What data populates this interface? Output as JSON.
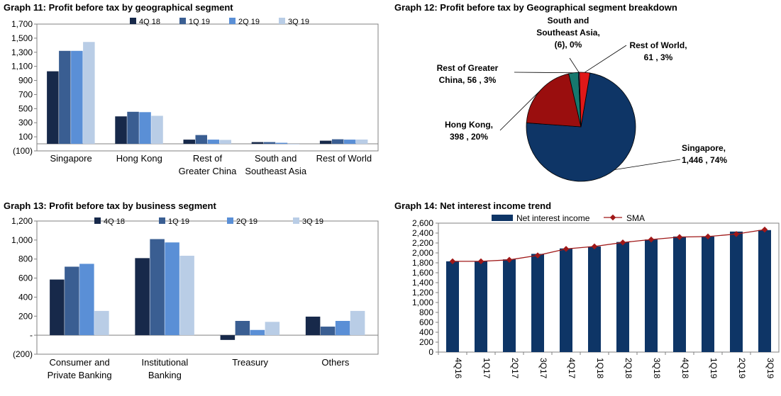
{
  "colors": {
    "s4q18": "#17294a",
    "s1q19": "#3a5e92",
    "s2q19": "#5a8fd6",
    "s3q19": "#b9cde6",
    "bar14": "#0e3566",
    "sma": "#a01818",
    "pie_singapore": "#0e3566",
    "pie_hongkong": "#9a0e0e",
    "pie_greaterchina": "#17786e",
    "pie_sea": "#3a70b5",
    "pie_row": "#e01818",
    "axis": "#808080",
    "grid": "#d9d9d9"
  },
  "chart_data": [
    {
      "id": "g11",
      "type": "bar",
      "title": "Graph 11: Profit before tax by geographical segment",
      "categories": [
        [
          "Singapore"
        ],
        [
          "Hong Kong"
        ],
        [
          "Rest of",
          "Greater China"
        ],
        [
          "South and",
          "Southeast Asia"
        ],
        [
          "Rest of World"
        ]
      ],
      "series": [
        {
          "name": "4Q 18",
          "values": [
            1030,
            390,
            60,
            25,
            45
          ]
        },
        {
          "name": "1Q 19",
          "values": [
            1320,
            455,
            125,
            25,
            65
          ]
        },
        {
          "name": "2Q 19",
          "values": [
            1320,
            450,
            60,
            15,
            60
          ]
        },
        {
          "name": "3Q 19",
          "values": [
            1446,
            398,
            56,
            -6,
            61
          ]
        }
      ],
      "ylim": [
        -100,
        1700
      ],
      "yticks": [
        -100,
        100,
        300,
        500,
        700,
        900,
        1100,
        1300,
        1500,
        1700
      ],
      "ytick_labels": [
        "(100)",
        "100",
        "300",
        "500",
        "700",
        "900",
        "1,100",
        "1,300",
        "1,500",
        "1,700"
      ],
      "grid": false,
      "legend": "top"
    },
    {
      "id": "g12",
      "type": "pie",
      "title": "Graph 12: Profit before tax by Geographical segment breakdown",
      "slices": [
        {
          "name": "Singapore",
          "value": 1446,
          "pct": "74%",
          "label": [
            "Singapore,",
            "1,446 , 74%"
          ]
        },
        {
          "name": "Hong Kong",
          "value": 398,
          "pct": "20%",
          "label": [
            "Hong Kong,",
            "398 , 20%"
          ]
        },
        {
          "name": "Rest of Greater China",
          "value": 56,
          "pct": "3%",
          "label": [
            "Rest of Greater",
            "China, 56 , 3%"
          ]
        },
        {
          "name": "South and Southeast Asia",
          "value": -6,
          "pct": "0%",
          "label": [
            "South and",
            "Southeast Asia,",
            "(6), 0%"
          ]
        },
        {
          "name": "Rest of World",
          "value": 61,
          "pct": "3%",
          "label": [
            "Rest of World,",
            "61 , 3%"
          ]
        }
      ]
    },
    {
      "id": "g13",
      "type": "bar",
      "title": "Graph 13: Profit before tax by business segment",
      "categories": [
        [
          "Consumer and",
          "Private Banking"
        ],
        [
          "Institutional",
          "Banking"
        ],
        [
          "Treasury"
        ],
        [
          "Others"
        ]
      ],
      "series": [
        {
          "name": "4Q 18",
          "values": [
            585,
            810,
            -50,
            195
          ]
        },
        {
          "name": "1Q 19",
          "values": [
            720,
            1010,
            150,
            90
          ]
        },
        {
          "name": "2Q 19",
          "values": [
            750,
            975,
            55,
            150
          ]
        },
        {
          "name": "3Q 19",
          "values": [
            255,
            835,
            140,
            255
          ]
        }
      ],
      "ylim": [
        -200,
        1200
      ],
      "yticks": [
        -200,
        0,
        200,
        400,
        600,
        800,
        1000,
        1200
      ],
      "ytick_labels": [
        "(200)",
        "-",
        "200",
        "400",
        "600",
        "800",
        "1,000",
        "1,200"
      ],
      "grid": false,
      "legend": "top"
    },
    {
      "id": "g14",
      "type": "bar",
      "title": "Graph 14: Net interest income trend",
      "categories": [
        "4Q16",
        "1Q17",
        "2Q17",
        "3Q17",
        "4Q17",
        "1Q18",
        "2Q18",
        "3Q18",
        "4Q18",
        "1Q19",
        "2Q19",
        "3Q19"
      ],
      "series": [
        {
          "name": "Net interest income",
          "kind": "bar",
          "values": [
            1830,
            1830,
            1870,
            1980,
            2090,
            2130,
            2220,
            2270,
            2330,
            2330,
            2430,
            2460
          ]
        },
        {
          "name": "SMA",
          "kind": "line",
          "values": [
            1830,
            1830,
            1860,
            1950,
            2080,
            2130,
            2210,
            2270,
            2320,
            2330,
            2380,
            2470
          ]
        }
      ],
      "ylim": [
        0,
        2600
      ],
      "yticks": [
        0,
        200,
        400,
        600,
        800,
        1000,
        1200,
        1400,
        1600,
        1800,
        2000,
        2200,
        2400,
        2600
      ],
      "ytick_labels": [
        "0",
        "200",
        "400",
        "600",
        "800",
        "1,000",
        "1,200",
        "1,400",
        "1,600",
        "1,800",
        "2,000",
        "2,200",
        "2,400",
        "2,600"
      ],
      "grid": false,
      "legend": "top"
    }
  ]
}
